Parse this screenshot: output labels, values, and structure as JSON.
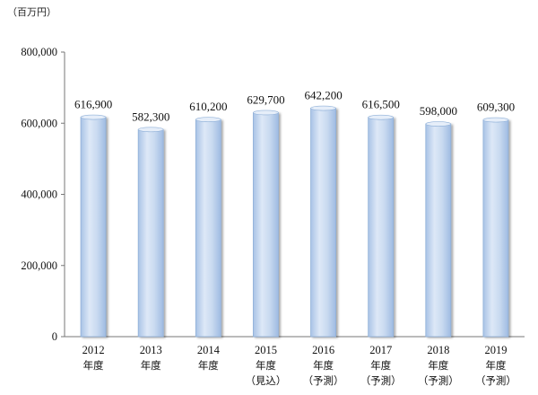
{
  "chart_data": {
    "type": "bar",
    "unit_label": "（百万円）",
    "categories": [
      {
        "year": "2012",
        "suffix": "年度",
        "note": ""
      },
      {
        "year": "2013",
        "suffix": "年度",
        "note": ""
      },
      {
        "year": "2014",
        "suffix": "年度",
        "note": ""
      },
      {
        "year": "2015",
        "suffix": "年度",
        "note": "（見込）"
      },
      {
        "year": "2016",
        "suffix": "年度",
        "note": "（予測）"
      },
      {
        "year": "2017",
        "suffix": "年度",
        "note": "（予測）"
      },
      {
        "year": "2018",
        "suffix": "年度",
        "note": "（予測）"
      },
      {
        "year": "2019",
        "suffix": "年度",
        "note": "（予測）"
      }
    ],
    "values": [
      616900,
      582300,
      610200,
      629700,
      642200,
      616500,
      598000,
      609300
    ],
    "value_labels": [
      "616,900",
      "582,300",
      "610,200",
      "629,700",
      "642,200",
      "616,500",
      "598,000",
      "609,300"
    ],
    "ylim": [
      0,
      800000
    ],
    "yticks": [
      0,
      200000,
      400000,
      600000,
      800000
    ],
    "ytick_labels": [
      "0",
      "200,000",
      "400,000",
      "600,000",
      "800,000"
    ],
    "grid": false,
    "legend": "none",
    "bar_color": "#c5d7ef",
    "bar_edge_color": "#8fb0d8"
  }
}
